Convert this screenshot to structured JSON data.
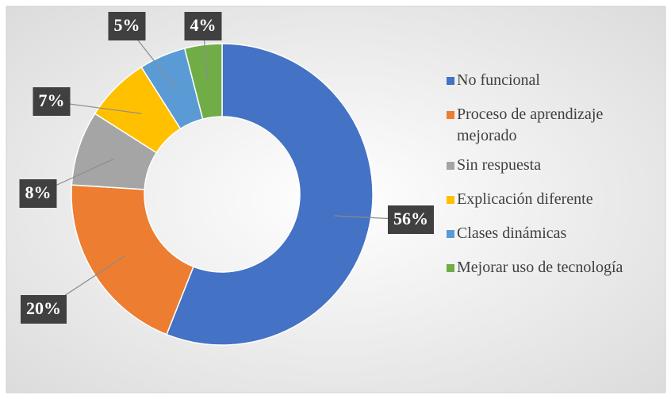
{
  "chart_data": {
    "type": "donut",
    "categories": [
      "No funcional",
      "Proceso de aprendizaje mejorado",
      "Sin respuesta",
      "Explicación diferente",
      "Clases dinámicas",
      "Mejorar uso de tecnología"
    ],
    "values": [
      56,
      20,
      8,
      7,
      5,
      4
    ],
    "value_labels": [
      "56%",
      "20%",
      "8%",
      "7%",
      "5%",
      "4%"
    ],
    "colors": [
      "#4472c4",
      "#ed7d31",
      "#a5a5a5",
      "#ffc000",
      "#5b9bd5",
      "#70ad47"
    ],
    "legend": "right"
  }
}
